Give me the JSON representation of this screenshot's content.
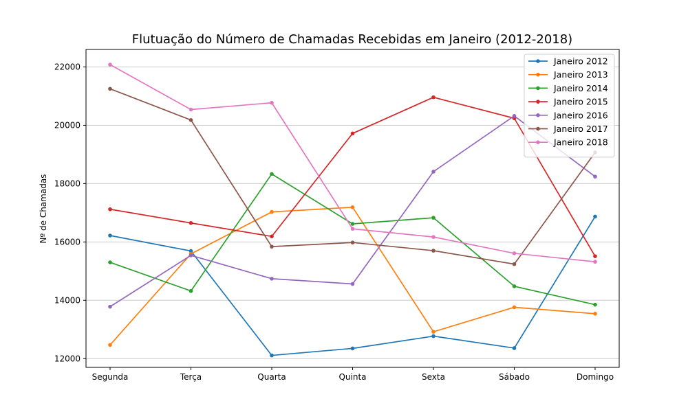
{
  "chart_data": {
    "type": "line",
    "title": "Flutuação do Número de Chamadas Recebidas em Janeiro (2012-2018)",
    "xlabel": "",
    "ylabel": "Nº de Chamadas",
    "categories": [
      "Segunda",
      "Terça",
      "Quarta",
      "Quinta",
      "Sexta",
      "Sábado",
      "Domingo"
    ],
    "ylim": [
      11700,
      22600
    ],
    "yticks": [
      12000,
      14000,
      16000,
      18000,
      20000,
      22000
    ],
    "grid": "horizontal",
    "legend_position": "top-right",
    "series": [
      {
        "name": "Janeiro 2012",
        "color": "#1f77b4",
        "values": [
          16220,
          15690,
          12110,
          12350,
          12770,
          12360,
          16870
        ]
      },
      {
        "name": "Janeiro 2013",
        "color": "#ff7f0e",
        "values": [
          12470,
          15590,
          17030,
          17190,
          12920,
          13760,
          13540
        ]
      },
      {
        "name": "Janeiro 2014",
        "color": "#2ca02c",
        "values": [
          15300,
          14320,
          18330,
          16620,
          16830,
          14480,
          13850
        ]
      },
      {
        "name": "Janeiro 2015",
        "color": "#d62728",
        "values": [
          17120,
          16650,
          16190,
          19720,
          20960,
          20240,
          15510
        ]
      },
      {
        "name": "Janeiro 2016",
        "color": "#9467bd",
        "values": [
          13780,
          15540,
          14740,
          14560,
          18410,
          20320,
          18240
        ]
      },
      {
        "name": "Janeiro 2017",
        "color": "#8c564b",
        "values": [
          21250,
          20180,
          15840,
          15980,
          15700,
          15240,
          19070
        ]
      },
      {
        "name": "Janeiro 2018",
        "color": "#e377c2",
        "values": [
          22080,
          20540,
          20770,
          16450,
          16170,
          15610,
          15320
        ]
      }
    ]
  }
}
